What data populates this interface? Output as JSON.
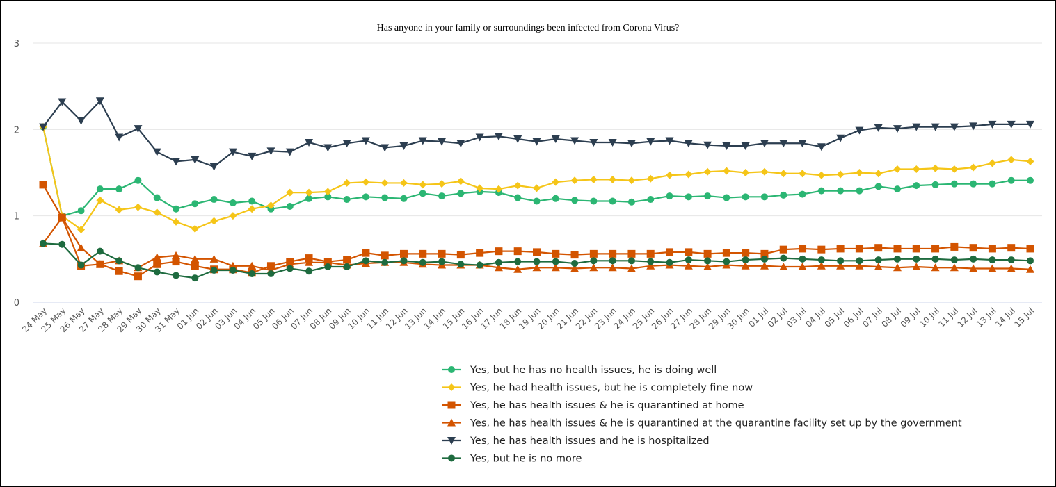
{
  "chart_data": {
    "type": "line",
    "title": "Has anyone in your family or surroundings been infected from Corona Virus?",
    "xlabel": "",
    "ylabel": "",
    "ylim": [
      0,
      3
    ],
    "yticks": [
      "0",
      "1",
      "2",
      "3"
    ],
    "grid": true,
    "legend_position": "bottom-center",
    "categories": [
      "24 May",
      "25 May",
      "26 May",
      "27 May",
      "28 May",
      "29 May",
      "30 May",
      "31 May",
      "01 Jun",
      "02 Jun",
      "03 Jun",
      "04 Jun",
      "05 Jun",
      "06 Jun",
      "07 Jun",
      "08 Jun",
      "09 Jun",
      "10 Jun",
      "11 Jun",
      "12 Jun",
      "13 Jun",
      "14 Jun",
      "15 Jun",
      "16 Jun",
      "17 Jun",
      "18 Jun",
      "19 Jun",
      "20 Jun",
      "21 Jun",
      "22 Jun",
      "23 Jun",
      "24 Jun",
      "25 Jun",
      "26 Jun",
      "27 Jun",
      "28 Jun",
      "29 Jun",
      "30 Jun",
      "01 Jul",
      "02 Jul",
      "03 Jul",
      "04 Jul",
      "05 Jul",
      "06 Jul",
      "07 Jul",
      "08 Jul",
      "09 Jul",
      "10 Jul",
      "11 Jul",
      "12 Jul",
      "13 Jul",
      "14 Jul",
      "15 Jul"
    ],
    "series": [
      {
        "name": "Yes, but he has no health issues, he is doing well",
        "color": "#2bb673",
        "marker": "circle",
        "values": [
          2.03,
          1.0,
          1.06,
          1.31,
          1.31,
          1.41,
          1.21,
          1.08,
          1.14,
          1.19,
          1.15,
          1.17,
          1.08,
          1.11,
          1.2,
          1.22,
          1.19,
          1.22,
          1.21,
          1.2,
          1.26,
          1.23,
          1.26,
          1.28,
          1.27,
          1.21,
          1.17,
          1.2,
          1.18,
          1.17,
          1.17,
          1.16,
          1.19,
          1.23,
          1.22,
          1.23,
          1.21,
          1.22,
          1.22,
          1.24,
          1.25,
          1.29,
          1.29,
          1.29,
          1.34,
          1.31,
          1.35,
          1.36,
          1.37,
          1.37,
          1.37,
          1.41,
          1.41
        ]
      },
      {
        "name": "Yes, he had health issues, but he is completely fine now",
        "color": "#f5c518",
        "marker": "diamond",
        "values": [
          2.03,
          1.0,
          0.84,
          1.18,
          1.07,
          1.1,
          1.04,
          0.93,
          0.85,
          0.94,
          1.0,
          1.08,
          1.12,
          1.27,
          1.27,
          1.28,
          1.38,
          1.39,
          1.38,
          1.38,
          1.36,
          1.37,
          1.4,
          1.32,
          1.31,
          1.35,
          1.32,
          1.39,
          1.41,
          1.42,
          1.42,
          1.41,
          1.43,
          1.47,
          1.48,
          1.51,
          1.52,
          1.5,
          1.51,
          1.49,
          1.49,
          1.47,
          1.48,
          1.5,
          1.49,
          1.54,
          1.54,
          1.55,
          1.54,
          1.56,
          1.61,
          1.65,
          1.63
        ]
      },
      {
        "name": "Yes, he has health issues & he is quarantined at home",
        "color": "#d35400",
        "marker": "square",
        "values": [
          1.36,
          0.98,
          0.42,
          0.44,
          0.36,
          0.3,
          0.44,
          0.47,
          0.42,
          0.38,
          0.38,
          0.34,
          0.42,
          0.47,
          0.51,
          0.47,
          0.49,
          0.57,
          0.54,
          0.56,
          0.56,
          0.56,
          0.55,
          0.57,
          0.59,
          0.59,
          0.58,
          0.56,
          0.55,
          0.56,
          0.56,
          0.56,
          0.56,
          0.58,
          0.58,
          0.56,
          0.57,
          0.57,
          0.56,
          0.61,
          0.62,
          0.61,
          0.62,
          0.62,
          0.63,
          0.62,
          0.62,
          0.62,
          0.64,
          0.63,
          0.62,
          0.63,
          0.62
        ]
      },
      {
        "name": "Yes, he has health issues & he is quarantined at the quarantine facility set up by the government",
        "color": "#d35400",
        "marker": "triangle",
        "values": [
          0.68,
          0.98,
          0.63,
          0.44,
          0.48,
          0.4,
          0.52,
          0.54,
          0.5,
          0.5,
          0.42,
          0.42,
          0.37,
          0.44,
          0.46,
          0.46,
          0.43,
          0.45,
          0.46,
          0.46,
          0.44,
          0.43,
          0.43,
          0.43,
          0.4,
          0.38,
          0.4,
          0.4,
          0.39,
          0.4,
          0.4,
          0.39,
          0.42,
          0.43,
          0.42,
          0.41,
          0.43,
          0.42,
          0.42,
          0.41,
          0.41,
          0.42,
          0.42,
          0.42,
          0.41,
          0.4,
          0.41,
          0.4,
          0.4,
          0.39,
          0.39,
          0.39,
          0.38
        ]
      },
      {
        "name": "Yes, he has health issues and he is hospitalized",
        "color": "#2c3e50",
        "marker": "triangle-down",
        "values": [
          2.03,
          2.32,
          2.1,
          2.33,
          1.91,
          2.01,
          1.74,
          1.63,
          1.65,
          1.57,
          1.74,
          1.69,
          1.75,
          1.74,
          1.85,
          1.79,
          1.84,
          1.87,
          1.79,
          1.81,
          1.87,
          1.86,
          1.84,
          1.91,
          1.92,
          1.89,
          1.86,
          1.89,
          1.87,
          1.85,
          1.85,
          1.84,
          1.86,
          1.87,
          1.84,
          1.82,
          1.81,
          1.81,
          1.84,
          1.84,
          1.84,
          1.8,
          1.9,
          1.99,
          2.02,
          2.01,
          2.03,
          2.03,
          2.03,
          2.04,
          2.06,
          2.06,
          2.06
        ]
      },
      {
        "name": "Yes, but he is no more",
        "color": "#1e6b3f",
        "marker": "circle",
        "values": [
          0.68,
          0.67,
          0.43,
          0.59,
          0.48,
          0.4,
          0.35,
          0.31,
          0.28,
          0.37,
          0.37,
          0.33,
          0.33,
          0.39,
          0.36,
          0.41,
          0.41,
          0.48,
          0.46,
          0.48,
          0.46,
          0.47,
          0.44,
          0.43,
          0.46,
          0.47,
          0.47,
          0.47,
          0.45,
          0.48,
          0.48,
          0.48,
          0.47,
          0.46,
          0.49,
          0.48,
          0.47,
          0.49,
          0.5,
          0.51,
          0.5,
          0.49,
          0.48,
          0.48,
          0.49,
          0.5,
          0.5,
          0.5,
          0.49,
          0.5,
          0.49,
          0.49,
          0.48
        ]
      }
    ]
  }
}
